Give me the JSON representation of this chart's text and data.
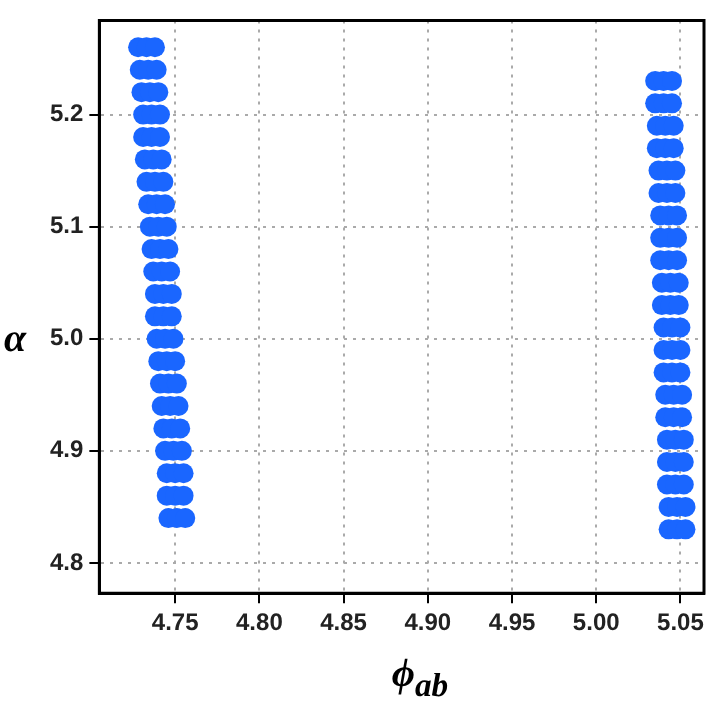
{
  "chart_data": {
    "type": "scatter",
    "xlabel": "ϕ$_{ab}$",
    "ylabel": "α",
    "marker": "circle",
    "grid": true,
    "legend": false,
    "xlim": [
      4.705,
      5.064
    ],
    "ylim": [
      4.773,
      5.284
    ],
    "xticks": [
      4.75,
      {
        "value": 4.8,
        "label": "4.80"
      },
      4.85,
      {
        "value": 4.9,
        "label": "4.90"
      },
      4.95,
      {
        "value": 5,
        "label": "5.00"
      },
      5.05
    ],
    "yticks": [
      4.8,
      4.9,
      {
        "value": 5,
        "label": "5.0"
      },
      5.1,
      5.2
    ],
    "series": [
      {
        "color": "#1a66ff",
        "x": [
          4.728,
          4.733,
          4.738,
          4.729,
          4.734,
          4.739,
          4.73,
          4.735,
          4.74,
          4.731,
          4.736,
          4.741,
          4.731,
          4.736,
          4.741,
          4.732,
          4.737,
          4.742,
          4.733,
          4.738,
          4.743,
          4.734,
          4.739,
          4.744,
          4.735,
          4.74,
          4.745,
          4.736,
          4.741,
          4.746,
          4.737,
          4.742,
          4.747,
          4.738,
          4.743,
          4.748,
          4.738,
          4.743,
          4.748,
          4.739,
          4.744,
          4.749,
          4.74,
          4.745,
          4.75,
          4.741,
          4.746,
          4.751,
          4.742,
          4.747,
          4.752,
          4.743,
          4.748,
          4.753,
          4.744,
          4.749,
          4.754,
          4.745,
          4.75,
          4.755,
          4.745,
          4.75,
          4.755,
          4.746,
          4.751,
          4.756,
          5.035,
          5.04,
          5.045,
          5.035,
          5.04,
          5.045,
          5.036,
          5.041,
          5.046,
          5.036,
          5.041,
          5.046,
          5.037,
          5.042,
          5.047,
          5.037,
          5.042,
          5.047,
          5.038,
          5.043,
          5.048,
          5.038,
          5.043,
          5.048,
          5.038,
          5.043,
          5.048,
          5.039,
          5.044,
          5.049,
          5.039,
          5.044,
          5.049,
          5.04,
          5.045,
          5.05,
          5.04,
          5.045,
          5.05,
          5.04,
          5.045,
          5.05,
          5.041,
          5.046,
          5.051,
          5.041,
          5.046,
          5.051,
          5.042,
          5.047,
          5.052,
          5.042,
          5.047,
          5.052,
          5.042,
          5.047,
          5.052,
          5.043,
          5.048,
          5.053,
          5.043,
          5.048,
          5.053
        ],
        "values": [
          5.26,
          5.26,
          5.26,
          5.24,
          5.24,
          5.24,
          5.22,
          5.22,
          5.22,
          5.2,
          5.2,
          5.2,
          5.18,
          5.18,
          5.18,
          5.16,
          5.16,
          5.16,
          5.14,
          5.14,
          5.14,
          5.12,
          5.12,
          5.12,
          5.1,
          5.1,
          5.1,
          5.08,
          5.08,
          5.08,
          5.06,
          5.06,
          5.06,
          5.04,
          5.04,
          5.04,
          5.02,
          5.02,
          5.02,
          5.0,
          5.0,
          5.0,
          4.98,
          4.98,
          4.98,
          4.96,
          4.96,
          4.96,
          4.94,
          4.94,
          4.94,
          4.92,
          4.92,
          4.92,
          4.9,
          4.9,
          4.9,
          4.88,
          4.88,
          4.88,
          4.86,
          4.86,
          4.86,
          4.84,
          4.84,
          4.84,
          5.23,
          5.23,
          5.23,
          5.21,
          5.21,
          5.21,
          5.19,
          5.19,
          5.19,
          5.17,
          5.17,
          5.17,
          5.15,
          5.15,
          5.15,
          5.13,
          5.13,
          5.13,
          5.11,
          5.11,
          5.11,
          5.09,
          5.09,
          5.09,
          5.07,
          5.07,
          5.07,
          5.05,
          5.05,
          5.05,
          5.03,
          5.03,
          5.03,
          5.01,
          5.01,
          5.01,
          4.99,
          4.99,
          4.99,
          4.97,
          4.97,
          4.97,
          4.95,
          4.95,
          4.95,
          4.93,
          4.93,
          4.93,
          4.91,
          4.91,
          4.91,
          4.89,
          4.89,
          4.89,
          4.87,
          4.87,
          4.87,
          4.85,
          4.85,
          4.85,
          4.83,
          4.83,
          4.83
        ]
      }
    ]
  }
}
